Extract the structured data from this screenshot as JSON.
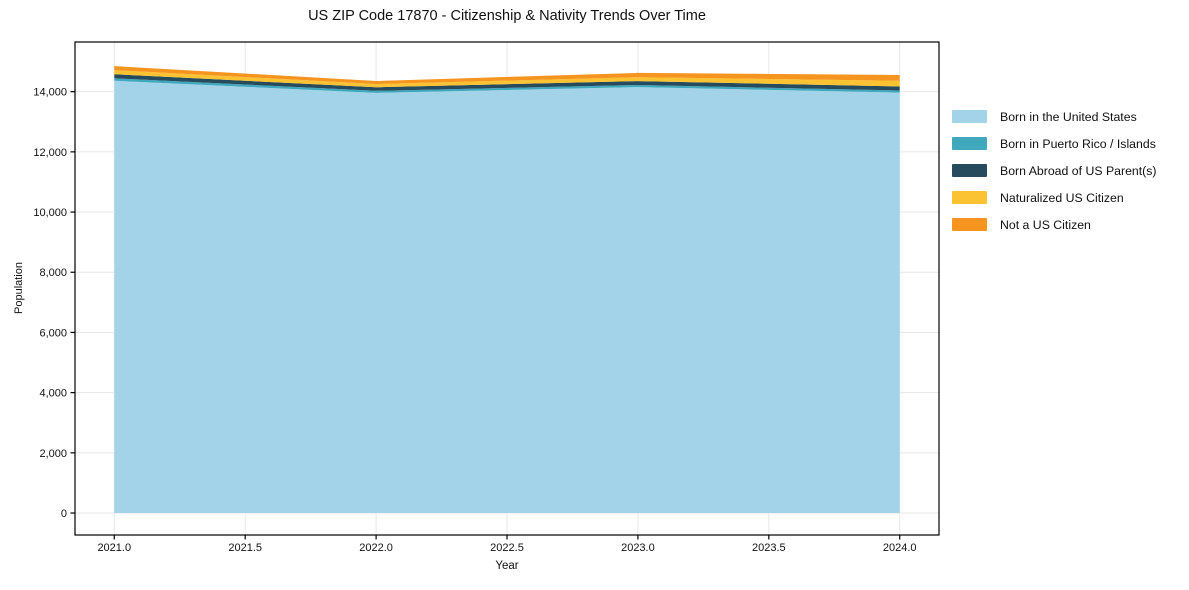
{
  "chart_data": {
    "type": "area",
    "stacked": true,
    "title": "US ZIP Code 17870 - Citizenship & Nativity Trends Over Time",
    "xlabel": "Year",
    "ylabel": "Population",
    "x": [
      2021,
      2022,
      2023,
      2024
    ],
    "series": [
      {
        "name": "Born in the United States",
        "color": "#a3d3e8",
        "values": [
          14360,
          13960,
          14150,
          13970
        ]
      },
      {
        "name": "Born in Puerto Rico / Islands",
        "color": "#3fa8bd",
        "values": [
          85,
          70,
          70,
          70
        ]
      },
      {
        "name": "Born Abroad of US Parent(s)",
        "color": "#264b5d",
        "values": [
          135,
          115,
          130,
          130
        ]
      },
      {
        "name": "Naturalized US Citizen",
        "color": "#fbc231",
        "values": [
          135,
          110,
          130,
          195
        ]
      },
      {
        "name": "Not a US Citizen",
        "color": "#f5941f",
        "values": [
          135,
          100,
          145,
          190
        ]
      }
    ],
    "xticks": {
      "values": [
        2021.0,
        2021.5,
        2022.0,
        2022.5,
        2023.0,
        2023.5,
        2024.0
      ],
      "labels": [
        "2021.0",
        "2021.5",
        "2022.0",
        "2022.5",
        "2023.0",
        "2023.5",
        "2024.0"
      ]
    },
    "yticks": {
      "values": [
        0,
        2000,
        4000,
        6000,
        8000,
        10000,
        12000,
        14000
      ],
      "labels": [
        "0",
        "2,000",
        "4,000",
        "6,000",
        "8,000",
        "10,000",
        "12,000",
        "14,000"
      ]
    },
    "xlim": [
      2020.85,
      2024.15
    ],
    "ylim": [
      -730,
      15650
    ],
    "grid": true,
    "legend_position": "right-outside"
  },
  "colors": {
    "background": "#ffffff",
    "grid": "#e7e7e7",
    "axis": "#000000",
    "tick_text": "#111111"
  }
}
